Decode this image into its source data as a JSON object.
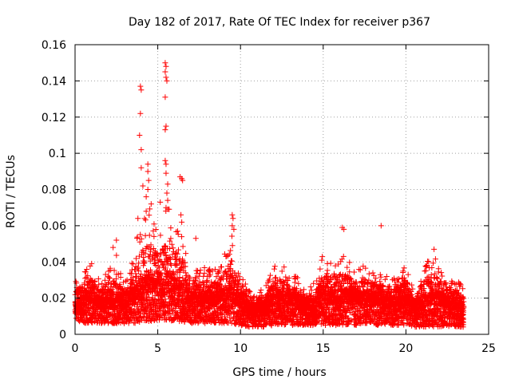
{
  "chart_data": {
    "type": "scatter",
    "title": "Day 182 of 2017, Rate Of TEC Index for receiver p367",
    "xlabel": "GPS time / hours",
    "ylabel": "ROTI / TECUs",
    "xlim": [
      0,
      25
    ],
    "ylim": [
      0,
      0.16
    ],
    "x_ticks": [
      0,
      5,
      10,
      15,
      20,
      25
    ],
    "y_ticks": [
      0,
      0.02,
      0.04,
      0.06,
      0.08,
      0.1,
      0.12,
      0.14,
      0.16
    ],
    "x_tick_labels": [
      "0",
      "5",
      "10",
      "15",
      "20",
      "25"
    ],
    "y_tick_labels": [
      "0",
      "0.02",
      "0.04",
      "0.06",
      "0.08",
      "0.1",
      "0.12",
      "0.14",
      "0.16"
    ],
    "grid": true,
    "marker": "+",
    "colors": {
      "series": "#ff0000",
      "grid": "#a0a0a0",
      "axis": "#000000"
    },
    "series": [
      {
        "name": "ROTI",
        "envelope": {
          "x": [
            0,
            0.5,
            1,
            1.5,
            2,
            2.5,
            3,
            3.5,
            4,
            4.5,
            5,
            5.5,
            6,
            6.5,
            7,
            7.5,
            8,
            8.5,
            9,
            9.5,
            10,
            10.5,
            11,
            11.5,
            12,
            12.5,
            13,
            13.5,
            14,
            14.5,
            15,
            15.5,
            16,
            16.5,
            17,
            17.5,
            18,
            18.5,
            19,
            19.5,
            20,
            20.5,
            21,
            21.5,
            22,
            22.5,
            23,
            23.5
          ],
          "low": [
            0.008,
            0.006,
            0.006,
            0.006,
            0.006,
            0.006,
            0.006,
            0.006,
            0.007,
            0.007,
            0.008,
            0.008,
            0.007,
            0.007,
            0.006,
            0.006,
            0.006,
            0.006,
            0.006,
            0.006,
            0.005,
            0.004,
            0.004,
            0.004,
            0.005,
            0.005,
            0.005,
            0.005,
            0.005,
            0.005,
            0.005,
            0.005,
            0.005,
            0.005,
            0.005,
            0.005,
            0.005,
            0.005,
            0.005,
            0.005,
            0.005,
            0.004,
            0.004,
            0.004,
            0.004,
            0.004,
            0.004,
            0.004
          ],
          "high": [
            0.03,
            0.036,
            0.04,
            0.03,
            0.035,
            0.045,
            0.028,
            0.045,
            0.062,
            0.07,
            0.06,
            0.075,
            0.065,
            0.058,
            0.033,
            0.037,
            0.038,
            0.037,
            0.045,
            0.055,
            0.032,
            0.028,
            0.026,
            0.026,
            0.038,
            0.04,
            0.033,
            0.034,
            0.024,
            0.03,
            0.045,
            0.042,
            0.044,
            0.042,
            0.036,
            0.04,
            0.038,
            0.035,
            0.033,
            0.032,
            0.042,
            0.024,
            0.038,
            0.045,
            0.04,
            0.036,
            0.03,
            0.027
          ],
          "typical": [
            0.014,
            0.016,
            0.017,
            0.015,
            0.015,
            0.016,
            0.015,
            0.018,
            0.022,
            0.023,
            0.022,
            0.024,
            0.022,
            0.02,
            0.017,
            0.017,
            0.017,
            0.017,
            0.018,
            0.019,
            0.015,
            0.013,
            0.012,
            0.013,
            0.016,
            0.017,
            0.016,
            0.015,
            0.013,
            0.014,
            0.017,
            0.017,
            0.018,
            0.018,
            0.017,
            0.017,
            0.016,
            0.016,
            0.015,
            0.015,
            0.017,
            0.012,
            0.015,
            0.016,
            0.016,
            0.015,
            0.013,
            0.012
          ]
        },
        "outliers": [
          {
            "x": 3.95,
            "y": 0.137
          },
          {
            "x": 4.0,
            "y": 0.135
          },
          {
            "x": 3.95,
            "y": 0.122
          },
          {
            "x": 3.9,
            "y": 0.11
          },
          {
            "x": 4.0,
            "y": 0.102
          },
          {
            "x": 4.0,
            "y": 0.092
          },
          {
            "x": 4.4,
            "y": 0.094
          },
          {
            "x": 4.4,
            "y": 0.09
          },
          {
            "x": 4.45,
            "y": 0.085
          },
          {
            "x": 4.1,
            "y": 0.082
          },
          {
            "x": 4.4,
            "y": 0.08
          },
          {
            "x": 4.3,
            "y": 0.076
          },
          {
            "x": 4.6,
            "y": 0.072
          },
          {
            "x": 5.15,
            "y": 0.073
          },
          {
            "x": 5.45,
            "y": 0.15
          },
          {
            "x": 5.5,
            "y": 0.148
          },
          {
            "x": 5.45,
            "y": 0.145
          },
          {
            "x": 5.5,
            "y": 0.142
          },
          {
            "x": 5.55,
            "y": 0.14
          },
          {
            "x": 5.45,
            "y": 0.131
          },
          {
            "x": 5.5,
            "y": 0.115
          },
          {
            "x": 5.45,
            "y": 0.113
          },
          {
            "x": 5.45,
            "y": 0.096
          },
          {
            "x": 5.5,
            "y": 0.094
          },
          {
            "x": 5.5,
            "y": 0.089
          },
          {
            "x": 5.6,
            "y": 0.083
          },
          {
            "x": 5.55,
            "y": 0.078
          },
          {
            "x": 5.6,
            "y": 0.074
          },
          {
            "x": 5.5,
            "y": 0.07
          },
          {
            "x": 6.35,
            "y": 0.087
          },
          {
            "x": 6.45,
            "y": 0.086
          },
          {
            "x": 6.5,
            "y": 0.085
          },
          {
            "x": 6.4,
            "y": 0.066
          },
          {
            "x": 6.45,
            "y": 0.062
          },
          {
            "x": 4.3,
            "y": 0.068
          },
          {
            "x": 4.2,
            "y": 0.064
          },
          {
            "x": 3.8,
            "y": 0.064
          },
          {
            "x": 9.5,
            "y": 0.066
          },
          {
            "x": 9.55,
            "y": 0.064
          },
          {
            "x": 9.5,
            "y": 0.06
          },
          {
            "x": 9.6,
            "y": 0.058
          },
          {
            "x": 16.15,
            "y": 0.059
          },
          {
            "x": 16.25,
            "y": 0.058
          },
          {
            "x": 18.5,
            "y": 0.06
          },
          {
            "x": 21.7,
            "y": 0.047
          },
          {
            "x": 7.3,
            "y": 0.053
          },
          {
            "x": 2.5,
            "y": 0.052
          },
          {
            "x": 2.3,
            "y": 0.048
          }
        ]
      }
    ]
  }
}
